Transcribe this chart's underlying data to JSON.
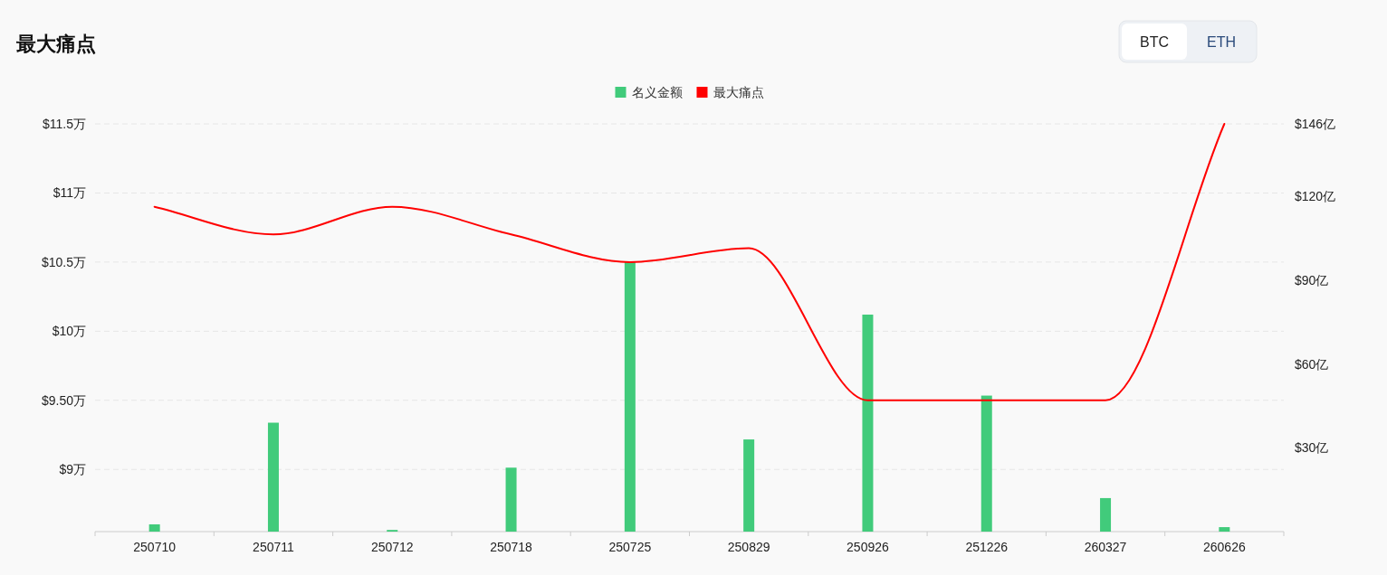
{
  "chart_data": {
    "type": "bar",
    "title": "最大痛点",
    "categories": [
      "250710",
      "250711",
      "250712",
      "250718",
      "250725",
      "250829",
      "250926",
      "251226",
      "260327",
      "260626"
    ],
    "series": [
      {
        "name": "名义金额",
        "axis": "y2",
        "color": "#41cb7b",
        "values": [
          2.6,
          39,
          0.6,
          22.9,
          96.5,
          33,
          77.7,
          48.7,
          12,
          1.6
        ]
      },
      {
        "name": "最大痛点",
        "type": "line",
        "color": "#ff0000",
        "marker": "none",
        "values": [
          10.9,
          10.7,
          10.9,
          10.7,
          10.5,
          10.6,
          9.5,
          9.5,
          9.5,
          11.5
        ]
      }
    ],
    "ylim": [
      8.55,
      11.5
    ],
    "yticks": [
      {
        "value": 9,
        "label": "$9万"
      },
      {
        "value": 9.5,
        "label": "$9.50万"
      },
      {
        "value": 10,
        "label": "$10万"
      },
      {
        "value": 10.5,
        "label": "$10.5万"
      },
      {
        "value": 11,
        "label": "$11万"
      },
      {
        "value": 11.5,
        "label": "$11.5万"
      }
    ],
    "y2lim": [
      0,
      146
    ],
    "y2ticks": [
      {
        "value": 30,
        "label": "$30亿"
      },
      {
        "value": 60,
        "label": "$60亿"
      },
      {
        "value": 90,
        "label": "$90亿"
      },
      {
        "value": 120,
        "label": "$120亿"
      },
      {
        "value": 146,
        "label": "$146亿"
      }
    ],
    "grid": "y",
    "legend": "top",
    "annotations": [
      "BTC",
      "ETH"
    ]
  }
}
